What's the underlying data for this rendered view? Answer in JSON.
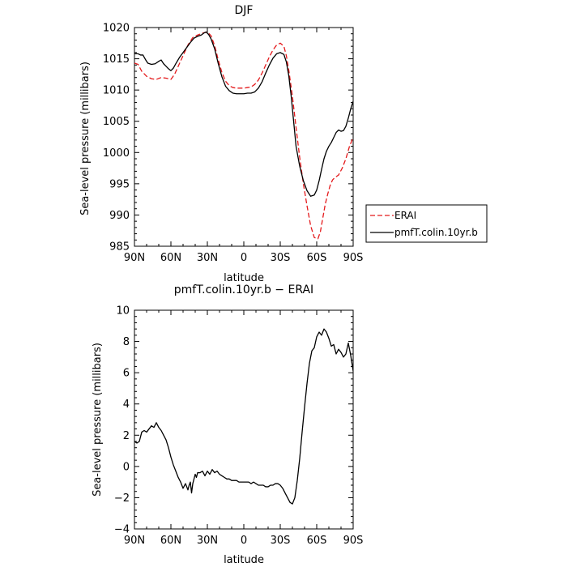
{
  "chart_data": [
    {
      "type": "line",
      "title": "DJF",
      "xlabel": "latitude",
      "ylabel": "Sea-level pressure (millibars)",
      "xlim": [
        -90,
        90
      ],
      "ylim": [
        985,
        1020
      ],
      "x_ticks": [
        -90,
        -60,
        -30,
        0,
        30,
        60,
        90
      ],
      "x_tick_labels": [
        "90N",
        "60N",
        "30N",
        "0",
        "30S",
        "60S",
        "90S"
      ],
      "y_ticks": [
        985,
        990,
        995,
        1000,
        1005,
        1010,
        1015,
        1020
      ],
      "y_tick_labels": [
        "985",
        "990",
        "995",
        "1000",
        "1005",
        "1010",
        "1015",
        "1020"
      ],
      "legend_position": "right",
      "series": [
        {
          "name": "ERAI",
          "color": "#e41a1c",
          "dash": "dashed",
          "x": [
            -90,
            -87,
            -84,
            -80,
            -76,
            -72,
            -68,
            -64,
            -60,
            -57,
            -54,
            -50,
            -46,
            -42,
            -38,
            -34,
            -30,
            -27,
            -24,
            -21,
            -18,
            -15,
            -12,
            -9,
            -6,
            -3,
            0,
            3,
            6,
            9,
            12,
            15,
            18,
            21,
            24,
            27,
            30,
            33,
            35,
            37,
            40,
            43,
            46,
            49,
            52,
            55,
            58,
            61,
            63,
            65,
            67,
            69,
            71,
            73,
            75,
            78,
            81,
            84,
            87,
            90
          ],
          "y": [
            1014.3,
            1014.1,
            1013.0,
            1012.2,
            1011.8,
            1011.7,
            1012.0,
            1011.9,
            1011.7,
            1012.5,
            1013.8,
            1015.5,
            1017.2,
            1018.4,
            1018.8,
            1019.1,
            1019.3,
            1018.7,
            1017.1,
            1014.8,
            1012.8,
            1011.4,
            1010.7,
            1010.4,
            1010.3,
            1010.3,
            1010.3,
            1010.4,
            1010.5,
            1010.9,
            1011.6,
            1012.7,
            1014.0,
            1015.3,
            1016.4,
            1017.2,
            1017.5,
            1017.0,
            1015.5,
            1013.2,
            1009.0,
            1004.0,
            999.2,
            995.0,
            991.5,
            988.3,
            986.4,
            986.2,
            987.3,
            989.5,
            991.7,
            993.3,
            994.7,
            995.6,
            996.0,
            996.4,
            997.5,
            999.0,
            1001.0,
            1002.4
          ]
        },
        {
          "name": "pmfT.colin.10yr.b",
          "color": "#000000",
          "dash": "solid",
          "x": [
            -90,
            -87,
            -85,
            -83,
            -81,
            -79,
            -76,
            -73,
            -70,
            -68,
            -66,
            -64,
            -62,
            -60,
            -58,
            -56,
            -53,
            -50,
            -47,
            -44,
            -41,
            -38,
            -35,
            -33,
            -31,
            -29,
            -27,
            -24,
            -21,
            -18,
            -15,
            -12,
            -9,
            -6,
            -3,
            0,
            3,
            6,
            9,
            12,
            15,
            18,
            21,
            24,
            27,
            30,
            33,
            35,
            37,
            39,
            41,
            43,
            46,
            49,
            52,
            55,
            58,
            60,
            62,
            64,
            66,
            68,
            70,
            72,
            74,
            76,
            78,
            80,
            82,
            84,
            86,
            88,
            90
          ],
          "y": [
            1015.8,
            1015.8,
            1015.6,
            1015.6,
            1014.9,
            1014.3,
            1014.1,
            1014.2,
            1014.6,
            1014.8,
            1014.2,
            1013.8,
            1013.4,
            1013.1,
            1013.5,
            1014.2,
            1015.2,
            1016.0,
            1016.8,
            1017.6,
            1018.3,
            1018.6,
            1018.8,
            1019.1,
            1019.3,
            1018.9,
            1018.2,
            1016.6,
            1014.2,
            1012.1,
            1010.6,
            1009.9,
            1009.5,
            1009.4,
            1009.4,
            1009.4,
            1009.5,
            1009.5,
            1009.7,
            1010.3,
            1011.3,
            1012.7,
            1014.0,
            1015.1,
            1015.8,
            1016.0,
            1015.7,
            1014.5,
            1012.3,
            1009.0,
            1005.0,
            1001.0,
            997.8,
            995.5,
            993.9,
            993.0,
            993.2,
            994.0,
            995.5,
            997.3,
            999.0,
            1000.2,
            1001.0,
            1001.6,
            1002.4,
            1003.2,
            1003.6,
            1003.4,
            1003.5,
            1004.2,
            1005.5,
            1007.0,
            1008.2
          ]
        }
      ]
    },
    {
      "type": "line",
      "title": "pmfT.colin.10yr.b − ERAI",
      "xlabel": "latitude",
      "ylabel": "Sea-level pressure (millibars)",
      "xlim": [
        -90,
        90
      ],
      "ylim": [
        -4,
        10
      ],
      "x_ticks": [
        -90,
        -60,
        -30,
        0,
        30,
        60,
        90
      ],
      "x_tick_labels": [
        "90N",
        "60N",
        "30N",
        "0",
        "30S",
        "60S",
        "90S"
      ],
      "y_ticks": [
        -4,
        -2,
        0,
        2,
        4,
        6,
        8,
        10
      ],
      "y_tick_labels": [
        "−4",
        "−2",
        "0",
        "2",
        "4",
        "6",
        "8",
        "10"
      ],
      "series": [
        {
          "color": "#000000",
          "dash": "solid",
          "x": [
            -90,
            -88,
            -86,
            -84,
            -82,
            -80,
            -78,
            -76,
            -74,
            -72,
            -70,
            -68,
            -66,
            -64,
            -62,
            -60,
            -58,
            -56,
            -54,
            -52,
            -50,
            -48,
            -46,
            -45,
            -44,
            -43,
            -42,
            -41,
            -40,
            -39,
            -38,
            -36,
            -34,
            -32,
            -30,
            -28,
            -26,
            -24,
            -22,
            -20,
            -18,
            -16,
            -14,
            -12,
            -10,
            -8,
            -6,
            -4,
            -2,
            0,
            2,
            4,
            6,
            8,
            10,
            12,
            14,
            16,
            18,
            20,
            22,
            24,
            26,
            28,
            30,
            32,
            34,
            36,
            38,
            40,
            42,
            44,
            46,
            48,
            50,
            52,
            54,
            56,
            58,
            60,
            62,
            64,
            66,
            68,
            70,
            72,
            74,
            76,
            78,
            80,
            82,
            84,
            86,
            88,
            90
          ],
          "y": [
            1.6,
            1.5,
            1.6,
            2.2,
            2.3,
            2.2,
            2.4,
            2.6,
            2.5,
            2.8,
            2.5,
            2.3,
            2.0,
            1.7,
            1.2,
            0.6,
            0.1,
            -0.3,
            -0.7,
            -1.0,
            -1.4,
            -1.1,
            -1.5,
            -1.2,
            -1.0,
            -1.7,
            -1.1,
            -0.8,
            -0.5,
            -0.7,
            -0.4,
            -0.4,
            -0.3,
            -0.6,
            -0.3,
            -0.5,
            -0.2,
            -0.4,
            -0.3,
            -0.5,
            -0.6,
            -0.7,
            -0.8,
            -0.8,
            -0.9,
            -0.9,
            -0.9,
            -1.0,
            -1.0,
            -1.0,
            -1.0,
            -1.0,
            -1.1,
            -1.0,
            -1.1,
            -1.2,
            -1.2,
            -1.2,
            -1.3,
            -1.3,
            -1.2,
            -1.2,
            -1.1,
            -1.1,
            -1.2,
            -1.4,
            -1.7,
            -2.0,
            -2.3,
            -2.4,
            -2.0,
            -0.9,
            0.5,
            2.2,
            3.8,
            5.3,
            6.6,
            7.4,
            7.6,
            8.3,
            8.6,
            8.4,
            8.8,
            8.6,
            8.2,
            7.7,
            7.8,
            7.2,
            7.5,
            7.3,
            7.0,
            7.2,
            7.9,
            7.1,
            6.1
          ]
        }
      ]
    }
  ],
  "legend": {
    "entries": [
      "ERAI",
      "pmfT.colin.10yr.b"
    ]
  }
}
